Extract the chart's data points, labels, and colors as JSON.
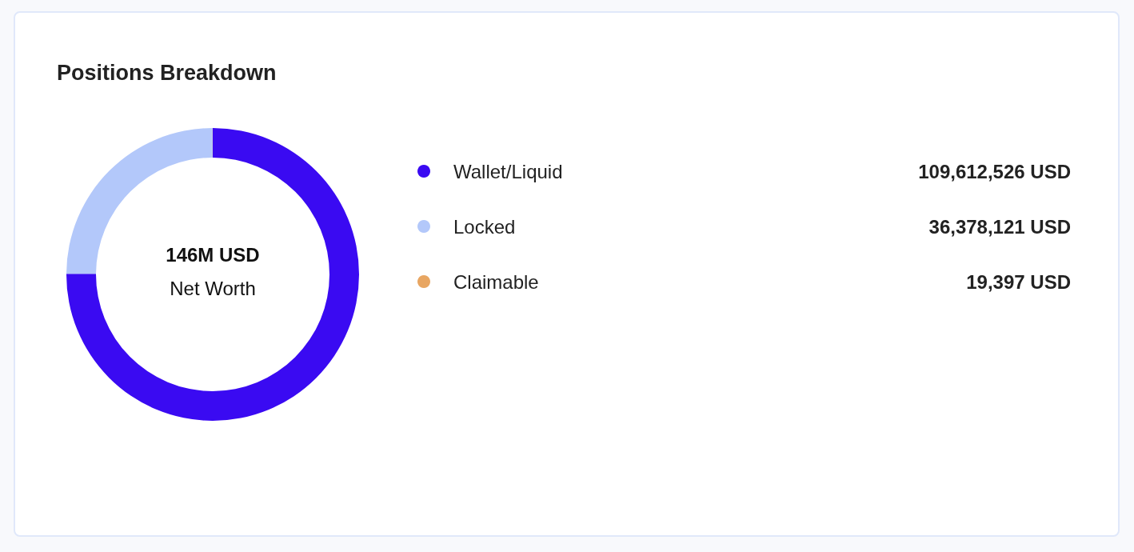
{
  "chart_data": {
    "type": "donut",
    "title": "Positions Breakdown",
    "categories": [
      "Wallet/Liquid",
      "Locked",
      "Claimable"
    ],
    "values": [
      109612526,
      36378121,
      19397
    ],
    "colors": [
      "#3a0af2",
      "#b3c8fa",
      "#e8a662"
    ],
    "value_labels": [
      "109,612,526 USD",
      "36,378,121 USD",
      "19,397 USD"
    ],
    "annotations": [
      "146M USD",
      "Net Worth"
    ],
    "legend": "right"
  }
}
